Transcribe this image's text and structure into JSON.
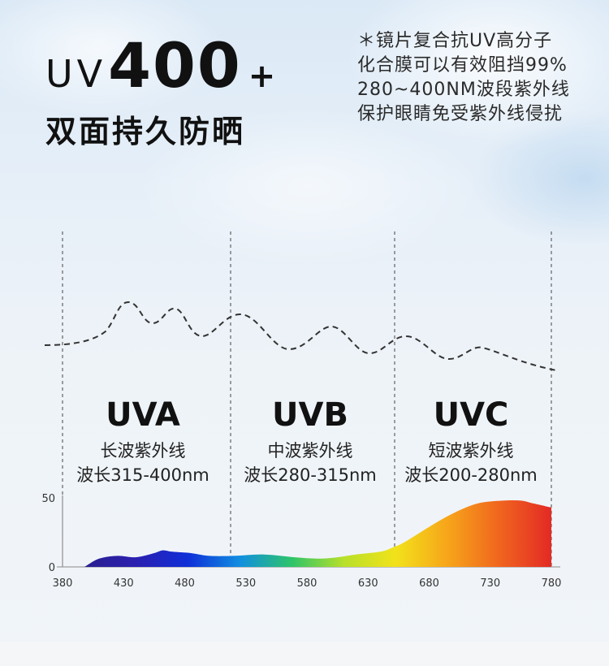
{
  "headline": {
    "prefix": "UV",
    "number": "400",
    "plus": "+",
    "subtitle": "双面持久防晒"
  },
  "notes": [
    "＊镜片复合抗UV高分子",
    "化合膜可以有效阻挡99%",
    "280~400NM波段紫外线",
    "保护眼睛免受紫外线侵扰"
  ],
  "bands": [
    {
      "title": "UVA",
      "name": "长波紫外线",
      "range": "波长315-400nm"
    },
    {
      "title": "UVB",
      "name": "中波紫外线",
      "range": "波长280-315nm"
    },
    {
      "title": "UVC",
      "name": "短波紫外线",
      "range": "波长200-280nm"
    }
  ],
  "chart_data": {
    "type": "area",
    "x_ticks": [
      "380",
      "430",
      "480",
      "530",
      "580",
      "630",
      "680",
      "730",
      "780"
    ],
    "y_ticks": [
      "0",
      "50"
    ],
    "xlim": [
      380,
      780
    ],
    "ylim": [
      0,
      50
    ],
    "x": [
      398,
      410,
      425,
      440,
      455,
      462,
      470,
      485,
      500,
      520,
      545,
      570,
      590,
      605,
      620,
      640,
      650,
      660,
      680,
      700,
      720,
      740,
      755,
      765,
      775,
      780
    ],
    "values": [
      0,
      6,
      8,
      7,
      10,
      12,
      11,
      10,
      8,
      8,
      9,
      7,
      6,
      7,
      9,
      11,
      14,
      18,
      29,
      39,
      46,
      48,
      48,
      46,
      44,
      43
    ],
    "gradient_colors": [
      "#2a1f8f",
      "#2b1fb0",
      "#0f2fd8",
      "#118fe0",
      "#2ec46a",
      "#b8e02a",
      "#f2e21a",
      "#f7a51a",
      "#f0651e",
      "#e32a25"
    ],
    "dashed_curve_color": "#333333"
  }
}
